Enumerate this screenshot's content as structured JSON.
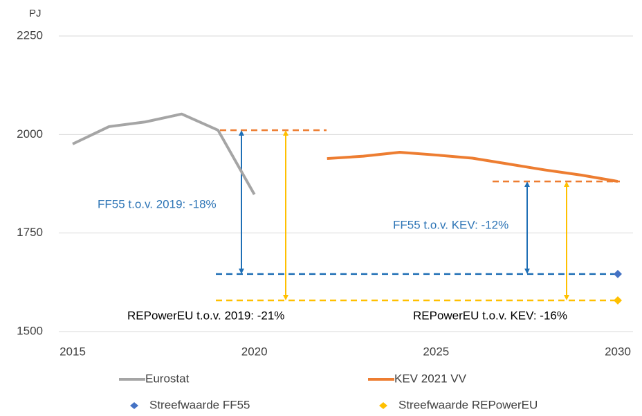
{
  "chart_data": {
    "type": "line",
    "y_label": "PJ",
    "x": [
      2015,
      2016,
      2017,
      2018,
      2019,
      2020,
      2021,
      2022,
      2023,
      2024,
      2025,
      2026,
      2027,
      2028,
      2029,
      2030
    ],
    "series": [
      {
        "name": "Eurostat",
        "color": "#a5a5a5",
        "mark": "line",
        "values": [
          1976,
          2020,
          2032,
          2052,
          2011,
          1848,
          null,
          null,
          null,
          null,
          null,
          null,
          null,
          null,
          null,
          null
        ]
      },
      {
        "name": "KEV 2021 VV",
        "color": "#ed7d31",
        "mark": "line",
        "values": [
          null,
          null,
          null,
          null,
          null,
          null,
          null,
          1939,
          1945,
          1955,
          1948,
          1940,
          1925,
          1910,
          1897,
          1881
        ]
      },
      {
        "name": "Streefwaarde FF55",
        "color": "#4472c4",
        "mark": "diamond",
        "values": [
          null,
          null,
          null,
          null,
          null,
          null,
          null,
          null,
          null,
          null,
          null,
          null,
          null,
          null,
          null,
          1646
        ]
      },
      {
        "name": "Streefwaarde REPowerEU",
        "color": "#ffc000",
        "mark": "diamond",
        "values": [
          null,
          null,
          null,
          null,
          null,
          null,
          null,
          null,
          null,
          null,
          null,
          null,
          null,
          null,
          null,
          1579
        ]
      }
    ],
    "annotations": [
      {
        "text": "FF55 t.o.v. 2019: -18%",
        "color": "#2e75b6"
      },
      {
        "text": "REPowerEU t.o.v. 2019: -21%",
        "color": "#000000"
      },
      {
        "text": "FF55 t.o.v. KEV: -12%",
        "color": "#2e75b6"
      },
      {
        "text": "REPowerEU t.o.v. KEV: -16%",
        "color": "#000000"
      }
    ],
    "xlim": [
      2015,
      2030
    ],
    "xticks": [
      2015,
      2020,
      2025,
      2030
    ],
    "ylim": [
      1500,
      2250
    ],
    "yticks": [
      1500,
      1750,
      2000,
      2250
    ],
    "grid": true
  }
}
